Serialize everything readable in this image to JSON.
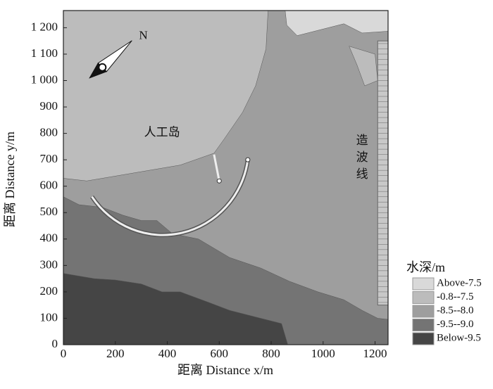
{
  "chart_data": {
    "type": "contour",
    "xlabel": "距离 Distance x/m",
    "ylabel": "距离 Distance y/m",
    "xlim": [
      0,
      1250
    ],
    "ylim": [
      0,
      1265
    ],
    "xticks": [
      0,
      200,
      400,
      600,
      800,
      {
        "value": 1000,
        "label": "1000"
      },
      {
        "value": 1200,
        "label": "1200"
      }
    ],
    "yticks": [
      0,
      100,
      200,
      300,
      400,
      500,
      600,
      700,
      800,
      900,
      {
        "value": 1000,
        "label": "1 000"
      },
      {
        "value": 1100,
        "label": "1 100"
      },
      {
        "value": 1200,
        "label": "1 200"
      }
    ],
    "legend_title": "水深/m",
    "levels": [
      {
        "name": "Above-7.5",
        "color": "#d9d9d9"
      },
      {
        "name": "-0.8--7.5",
        "color": "#bcbcbc"
      },
      {
        "name": "-8.5--8.0",
        "color": "#9e9e9e"
      },
      {
        "name": "-9.5--9.0",
        "color": "#747474"
      },
      {
        "name": "Below-9.5",
        "color": "#454545"
      }
    ],
    "annotations": {
      "north": "N",
      "island": "人工岛",
      "wave_maker": "造波线"
    }
  }
}
